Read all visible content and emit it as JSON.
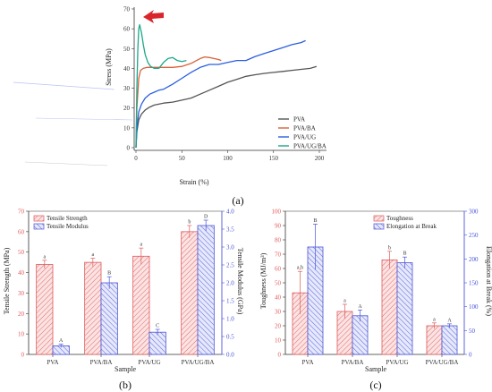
{
  "colors": {
    "pva": "#555555",
    "pva_ba": "#d9603a",
    "pva_ug": "#2b5fe0",
    "pva_ug_ba": "#1aa88a",
    "bar_red": "#e05a5a",
    "bar_blue": "#4a55d8",
    "arrow": "#d8262c"
  },
  "chart_data": [
    {
      "id": "a",
      "panel_label": "(a)",
      "type": "line",
      "xlabel": "Strain (%)",
      "ylabel": "Stress (MPa)",
      "xlim": [
        0,
        200
      ],
      "ylim": [
        0,
        70
      ],
      "xticks": [
        0,
        50,
        100,
        150,
        200
      ],
      "yticks": [
        0,
        10,
        20,
        30,
        40,
        50,
        60,
        70
      ],
      "legend_position": "bottom-right",
      "annotation": "red arrow pointing at PVA/UG/BA peak",
      "series": [
        {
          "name": "PVA",
          "color_key": "pva",
          "x": [
            0,
            1,
            3,
            6,
            10,
            15,
            20,
            30,
            40,
            50,
            60,
            70,
            80,
            90,
            100,
            110,
            120,
            130,
            140,
            150,
            160,
            170,
            180,
            190,
            197
          ],
          "y": [
            0,
            8,
            14,
            17,
            19,
            20.5,
            21.5,
            22.5,
            23,
            24,
            25,
            27,
            29,
            31,
            33,
            34.5,
            36,
            36.8,
            37.5,
            38,
            38.5,
            39,
            39.5,
            40,
            41
          ]
        },
        {
          "name": "PVA/BA",
          "color_key": "pva_ba",
          "x": [
            0,
            1,
            3,
            5,
            8,
            12,
            20,
            30,
            40,
            50,
            60,
            70,
            75,
            80,
            85,
            90,
            93
          ],
          "y": [
            0,
            20,
            35,
            39,
            40,
            40.5,
            40.5,
            40.5,
            40.5,
            41,
            42.5,
            45,
            45.8,
            45.5,
            45,
            44.5,
            44
          ]
        },
        {
          "name": "PVA/UG",
          "color_key": "pva_ug",
          "x": [
            0,
            1,
            3,
            6,
            10,
            15,
            20,
            25,
            30,
            40,
            50,
            60,
            70,
            80,
            90,
            100,
            110,
            120,
            130,
            140,
            150,
            160,
            170,
            180,
            185
          ],
          "y": [
            0,
            10,
            18,
            22,
            25,
            27,
            28,
            29,
            29.5,
            32,
            35,
            38,
            40.5,
            42,
            42,
            43,
            44,
            44,
            46,
            47.5,
            49,
            50.5,
            52,
            53,
            54
          ]
        },
        {
          "name": "PVA/UG/BA",
          "color_key": "pva_ug_ba",
          "x": [
            0,
            1,
            2,
            3,
            4,
            6,
            8,
            10,
            13,
            16,
            20,
            25,
            30,
            35,
            40,
            45,
            50,
            55
          ],
          "y": [
            0,
            30,
            50,
            60,
            62,
            58,
            52,
            47,
            43,
            41,
            40,
            40,
            43,
            45,
            45.5,
            44,
            43.5,
            44
          ]
        }
      ]
    },
    {
      "id": "b",
      "panel_label": "(b)",
      "type": "bar",
      "xlabel": "Sample",
      "ylabel": "Tensile Strength (MPa)",
      "ylabel_right": "Tensile Modulus (GPa)",
      "ylim": [
        0,
        70
      ],
      "ylim_right": [
        0,
        4.0
      ],
      "yticks": [
        0,
        10,
        20,
        30,
        40,
        50,
        60,
        70
      ],
      "yticks_right": [
        0.0,
        0.5,
        1.0,
        1.5,
        2.0,
        2.5,
        3.0,
        3.5,
        4.0
      ],
      "legend_position": "top-left",
      "categories": [
        "PVA",
        "PVA/BA",
        "PVA/UG",
        "PVA/UG/BA"
      ],
      "series": [
        {
          "name": "Tensile Strength",
          "axis": "left",
          "color_key": "bar_red",
          "values": [
            44,
            45,
            48,
            60
          ],
          "errors": [
            2,
            2,
            4,
            3
          ],
          "letters": [
            "a",
            "a",
            "a",
            "b"
          ]
        },
        {
          "name": "Tensile Modulus",
          "axis": "right",
          "color_key": "bar_blue",
          "values": [
            0.24,
            2.0,
            0.62,
            3.6
          ],
          "errors": [
            0.05,
            0.17,
            0.08,
            0.15
          ],
          "letters": [
            "A",
            "B",
            "C",
            "D"
          ]
        }
      ]
    },
    {
      "id": "c",
      "panel_label": "(c)",
      "type": "bar",
      "xlabel": "Sample",
      "ylabel": "Toughness (MJ/m³)",
      "ylabel_right": "Elongation at Break (%)",
      "ylim": [
        0,
        100
      ],
      "ylim_right": [
        0,
        300
      ],
      "yticks": [
        0,
        10,
        20,
        30,
        40,
        50,
        60,
        70,
        80,
        90,
        100
      ],
      "yticks_right": [
        0,
        50,
        100,
        150,
        200,
        250,
        300
      ],
      "legend_position": "top-right",
      "categories": [
        "PVA",
        "PVA/BA",
        "PVA/UG",
        "PVA/UG/BA"
      ],
      "series": [
        {
          "name": "Toughness",
          "axis": "left",
          "color_key": "bar_red",
          "values": [
            43,
            30,
            66,
            20
          ],
          "errors": [
            15,
            5,
            6,
            2
          ],
          "letters": [
            "a,b",
            "a",
            "b",
            "a"
          ]
        },
        {
          "name": "Elongation at Break",
          "axis": "right",
          "color_key": "bar_blue",
          "values": [
            225,
            81,
            192,
            60
          ],
          "errors": [
            48,
            12,
            12,
            4
          ],
          "letters": [
            "B",
            "A",
            "B",
            "A"
          ]
        }
      ]
    }
  ]
}
